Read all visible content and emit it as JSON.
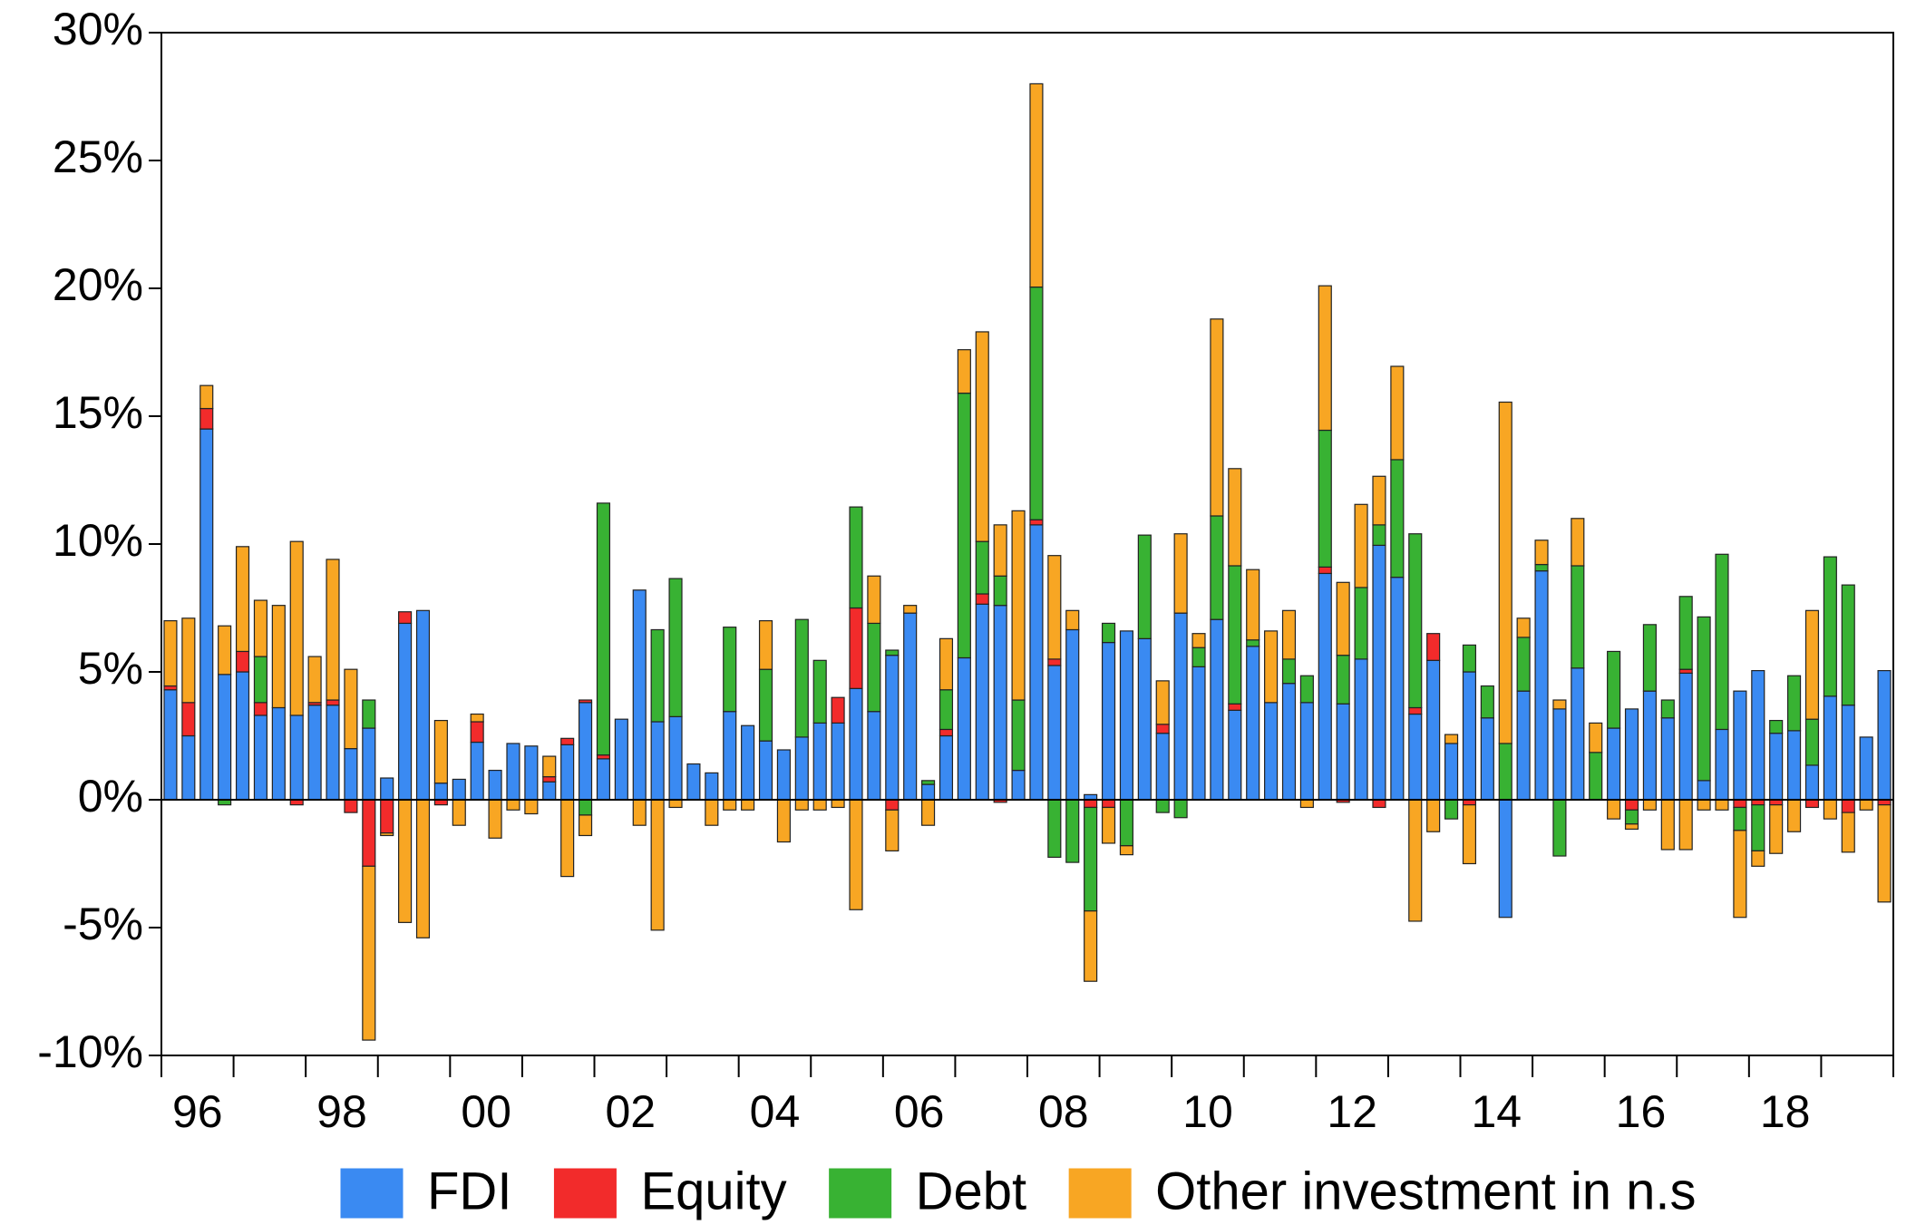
{
  "chart_data": {
    "type": "stacked_bar",
    "categories": [
      null,
      "96",
      null,
      null,
      null,
      null,
      null,
      null,
      null,
      "98",
      null,
      null,
      null,
      null,
      null,
      null,
      null,
      "00",
      null,
      null,
      null,
      null,
      null,
      null,
      null,
      "02",
      null,
      null,
      null,
      null,
      null,
      null,
      null,
      "04",
      null,
      null,
      null,
      null,
      null,
      null,
      null,
      "06",
      null,
      null,
      null,
      null,
      null,
      null,
      null,
      "08",
      null,
      null,
      null,
      null,
      null,
      null,
      null,
      "10",
      null,
      null,
      null,
      null,
      null,
      null,
      null,
      "12",
      null,
      null,
      null,
      null,
      null,
      null,
      null,
      "14",
      null,
      null,
      null,
      null,
      null,
      null,
      null,
      "16",
      null,
      null,
      null,
      null,
      null,
      null,
      null,
      "18",
      null,
      null,
      null,
      null,
      null,
      null
    ],
    "series": [
      {
        "name": "FDI",
        "color": "#3a8af2",
        "values": [
          4.3,
          2.5,
          14.5,
          4.9,
          5.0,
          3.3,
          3.6,
          3.3,
          3.7,
          3.7,
          2.0,
          2.8,
          0.85,
          6.9,
          7.4,
          0.65,
          0.8,
          2.25,
          1.15,
          2.2,
          2.1,
          0.7,
          2.15,
          3.8,
          1.6,
          3.15,
          8.2,
          3.05,
          3.25,
          1.4,
          1.05,
          3.45,
          2.9,
          2.3,
          1.95,
          2.45,
          3.0,
          3.0,
          4.35,
          3.45,
          5.65,
          7.3,
          0.6,
          2.5,
          5.55,
          7.65,
          7.6,
          1.15,
          10.75,
          5.25,
          6.65,
          0.2,
          6.15,
          6.6,
          6.3,
          2.6,
          7.3,
          5.2,
          7.05,
          3.5,
          6.0,
          3.8,
          4.55,
          3.8,
          8.85,
          3.75,
          5.5,
          9.95,
          8.7,
          3.35,
          5.45,
          2.2,
          5.0,
          3.2,
          -4.6,
          4.25,
          8.95,
          3.55,
          5.15,
          0,
          2.8,
          3.55,
          4.25,
          3.2,
          4.95,
          0.75,
          2.75,
          4.25,
          5.05,
          2.6,
          2.7,
          1.35,
          4.05,
          3.7,
          2.45,
          5.05
        ]
      },
      {
        "name": "Equity",
        "color": "#f22b2b",
        "values": [
          0.15,
          1.3,
          0.8,
          0,
          0.8,
          0.5,
          0,
          -0.2,
          0.1,
          0.2,
          -0.5,
          -2.6,
          -1.3,
          0.45,
          0,
          -0.2,
          0,
          0.8,
          0,
          0,
          0,
          0.2,
          0.25,
          0.1,
          0.15,
          0,
          0,
          0,
          0,
          0,
          0,
          0,
          0,
          0,
          0,
          0,
          0,
          1.0,
          3.15,
          0,
          -0.4,
          0,
          0,
          0.25,
          0,
          0.4,
          -0.1,
          0,
          0.2,
          0.25,
          0,
          -0.3,
          -0.3,
          0,
          0,
          0.35,
          0,
          0,
          0,
          0.25,
          0,
          0,
          0,
          0,
          0.25,
          -0.1,
          0,
          -0.3,
          0,
          0.25,
          1.05,
          0,
          -0.2,
          0,
          0,
          0,
          0,
          0,
          0,
          0,
          0,
          -0.4,
          0,
          0,
          0.15,
          0,
          0,
          -0.3,
          -0.2,
          -0.2,
          0,
          -0.3,
          0,
          -0.5,
          0,
          -0.2
        ]
      },
      {
        "name": "Debt",
        "color": "#38b233",
        "values": [
          0,
          0,
          0,
          -0.2,
          0,
          1.8,
          0,
          0,
          0,
          0,
          0,
          1.1,
          0,
          0,
          0,
          0,
          0,
          0,
          0,
          0,
          0,
          0,
          0,
          -0.6,
          9.85,
          0,
          0,
          3.6,
          5.4,
          0,
          0,
          3.3,
          0,
          2.8,
          0,
          4.6,
          2.45,
          0,
          3.95,
          3.45,
          0.2,
          0,
          0.15,
          1.55,
          10.35,
          2.05,
          1.15,
          2.75,
          9.1,
          -2.25,
          -2.45,
          -4.05,
          0.75,
          -1.8,
          4.05,
          -0.5,
          -0.7,
          0.75,
          4.05,
          5.4,
          0.25,
          0,
          0.95,
          1.05,
          5.35,
          1.9,
          2.8,
          0.8,
          4.6,
          6.8,
          0,
          -0.75,
          1.05,
          1.25,
          2.2,
          2.1,
          0.25,
          -2.2,
          4.0,
          1.85,
          3.0,
          -0.55,
          2.6,
          0.7,
          2.85,
          6.4,
          6.85,
          -0.9,
          -1.8,
          0.5,
          2.15,
          1.8,
          5.45,
          4.7,
          0,
          0
        ]
      },
      {
        "name": "Other investment in n.s",
        "color": "#f8a623",
        "values": [
          2.55,
          3.3,
          0.9,
          1.9,
          4.1,
          2.2,
          4.0,
          6.8,
          1.8,
          5.5,
          3.1,
          -6.8,
          -0.1,
          -4.8,
          -5.4,
          2.45,
          -1.0,
          0.3,
          -1.5,
          -0.4,
          -0.55,
          0.8,
          -3.0,
          -0.8,
          0,
          0,
          -1.0,
          -5.1,
          -0.3,
          0,
          -1.0,
          -0.4,
          -0.4,
          1.9,
          -1.65,
          -0.4,
          -0.4,
          -0.3,
          -4.3,
          1.85,
          -1.6,
          0.3,
          -1.0,
          2.0,
          1.7,
          8.2,
          2.0,
          7.4,
          7.95,
          4.05,
          0.75,
          -2.75,
          -1.4,
          -0.35,
          0,
          1.7,
          3.1,
          0.55,
          7.7,
          3.8,
          2.75,
          2.8,
          1.9,
          -0.3,
          5.65,
          2.85,
          3.25,
          1.9,
          3.65,
          -4.75,
          -1.25,
          0.35,
          -2.3,
          0,
          13.35,
          0.75,
          0.95,
          0.35,
          1.85,
          1.15,
          -0.75,
          -0.2,
          -0.4,
          -1.95,
          -1.95,
          -0.4,
          -0.4,
          -3.4,
          -0.6,
          -1.9,
          -1.25,
          4.25,
          -0.75,
          -1.55,
          -0.4,
          -3.8
        ]
      }
    ],
    "ylim": [
      -10,
      30
    ],
    "yticks": [
      {
        "value": -10,
        "label": "-10%"
      },
      {
        "value": -5,
        "label": "-5%"
      },
      {
        "value": 0,
        "label": "0%"
      },
      {
        "value": 5,
        "label": "5%"
      },
      {
        "value": 10,
        "label": "10%"
      },
      {
        "value": 15,
        "label": "15%"
      },
      {
        "value": 20,
        "label": "20%"
      },
      {
        "value": 25,
        "label": "25%"
      },
      {
        "value": 30,
        "label": "30%"
      }
    ],
    "grid": false,
    "legend": "bottom"
  }
}
